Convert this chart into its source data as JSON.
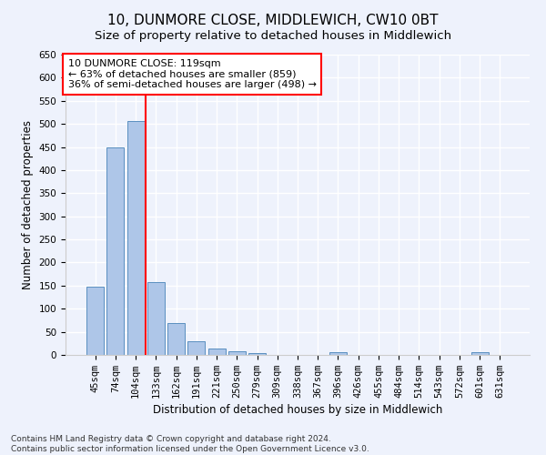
{
  "title": "10, DUNMORE CLOSE, MIDDLEWICH, CW10 0BT",
  "subtitle": "Size of property relative to detached houses in Middlewich",
  "xlabel": "Distribution of detached houses by size in Middlewich",
  "ylabel": "Number of detached properties",
  "categories": [
    "45sqm",
    "74sqm",
    "104sqm",
    "133sqm",
    "162sqm",
    "191sqm",
    "221sqm",
    "250sqm",
    "279sqm",
    "309sqm",
    "338sqm",
    "367sqm",
    "396sqm",
    "426sqm",
    "455sqm",
    "484sqm",
    "514sqm",
    "543sqm",
    "572sqm",
    "601sqm",
    "631sqm"
  ],
  "values": [
    148,
    450,
    507,
    158,
    68,
    30,
    13,
    8,
    4,
    0,
    0,
    0,
    6,
    0,
    0,
    0,
    0,
    0,
    0,
    6,
    0
  ],
  "bar_color": "#aec6e8",
  "bar_edge_color": "#5a8fc0",
  "vline_x_index": 2.5,
  "vline_color": "red",
  "annotation_text": "10 DUNMORE CLOSE: 119sqm\n← 63% of detached houses are smaller (859)\n36% of semi-detached houses are larger (498) →",
  "annotation_box_color": "white",
  "annotation_box_edge": "red",
  "ylim": [
    0,
    650
  ],
  "yticks": [
    0,
    50,
    100,
    150,
    200,
    250,
    300,
    350,
    400,
    450,
    500,
    550,
    600,
    650
  ],
  "footer": "Contains HM Land Registry data © Crown copyright and database right 2024.\nContains public sector information licensed under the Open Government Licence v3.0.",
  "bg_color": "#eef2fc",
  "grid_color": "white",
  "title_fontsize": 11,
  "subtitle_fontsize": 9.5,
  "axis_label_fontsize": 8.5,
  "tick_fontsize": 7.5,
  "annotation_fontsize": 8,
  "footer_fontsize": 6.5
}
